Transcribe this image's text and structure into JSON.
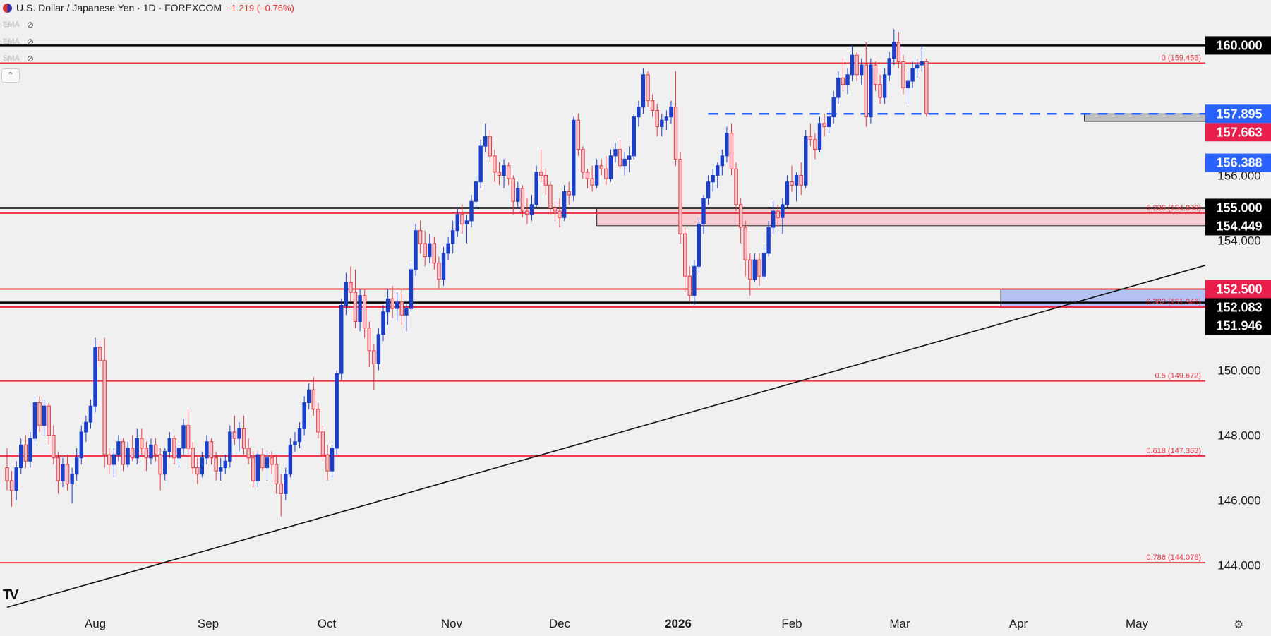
{
  "header": {
    "title": "U.S. Dollar / Japanese Yen · 1D · FOREXCOM",
    "change": "−1.219 (−0.76%)",
    "indicators": [
      "EMA",
      "EMA",
      "SMA"
    ]
  },
  "colors": {
    "bull": "#1a3fc9",
    "bear": "#e03b45",
    "red_line": "#e8333f",
    "black_line": "#000000",
    "blue_dash": "#2962ff",
    "pink_zone": "#f4c7cc",
    "blue_zone": "#aab9f2",
    "gray_zone": "#b5b5b5",
    "label_black": "#000000",
    "label_blue": "#2962ff",
    "label_red": "#e91e4b"
  },
  "chart_data": {
    "type": "candlestick",
    "ylim": [
      142.6,
      161.4
    ],
    "x_tick_labels": [
      "Aug",
      "Sep",
      "Oct",
      "Nov",
      "Dec",
      "2026",
      "Feb",
      "Mar",
      "Apr",
      "May"
    ],
    "y_tick_labels": [
      "144.000",
      "146.000",
      "148.000",
      "150.000",
      "154.000",
      "156.000"
    ],
    "price_labels": [
      {
        "text": "160.000",
        "price": 160.0,
        "style": "black"
      },
      {
        "text": "157.895",
        "price": 157.895,
        "style": "blue"
      },
      {
        "text": "157.663",
        "price": 157.663,
        "style": "red"
      },
      {
        "text": "156.388",
        "price": 156.388,
        "style": "blue"
      },
      {
        "text": "155.000",
        "price": 155.0,
        "style": "black"
      },
      {
        "text": "154.449",
        "price": 154.449,
        "style": "black"
      },
      {
        "text": "152.500",
        "price": 152.5,
        "style": "red"
      },
      {
        "text": "152.083",
        "price": 152.083,
        "style": "black"
      },
      {
        "text": "151.946",
        "price": 151.946,
        "style": "black"
      }
    ],
    "horizontal_lines": [
      {
        "price": 160.0,
        "style": "black"
      },
      {
        "price": 159.456,
        "style": "red"
      },
      {
        "price": 155.0,
        "style": "black"
      },
      {
        "price": 154.838,
        "style": "red"
      },
      {
        "price": 152.5,
        "style": "red"
      },
      {
        "price": 152.083,
        "style": "black"
      },
      {
        "price": 151.946,
        "style": "red"
      },
      {
        "price": 149.672,
        "style": "red"
      },
      {
        "price": 147.363,
        "style": "red"
      },
      {
        "price": 144.076,
        "style": "red"
      }
    ],
    "fib_labels": [
      {
        "text": "0 (159.456)",
        "price": 159.456
      },
      {
        "text": "0.236 (154.838)",
        "price": 154.838
      },
      {
        "text": "0.382 (151.946)",
        "price": 151.946
      },
      {
        "text": "0.5 (149.672)",
        "price": 149.672
      },
      {
        "text": "0.618 (147.363)",
        "price": 147.363
      },
      {
        "text": "0.786 (144.076)",
        "price": 144.076
      }
    ],
    "trendline": {
      "start": [
        0,
        142.7
      ],
      "end": [
        321,
        155.8
      ]
    },
    "dashed_levels": [
      {
        "price": 157.895,
        "from": 151,
        "to": 344
      },
      {
        "price": 156.388,
        "from": 262,
        "to": 344
      }
    ],
    "zones": [
      {
        "name": "resistance-zone",
        "from": 127,
        "to": 321,
        "top": 155.0,
        "bottom": 154.449,
        "style": "pink"
      },
      {
        "name": "support-zone",
        "from": 214,
        "to": 283,
        "top": 152.5,
        "bottom": 151.946,
        "style": "blue"
      },
      {
        "name": "consolidation-zone",
        "from": 232,
        "to": 344,
        "top": 157.895,
        "bottom": 157.663,
        "style": "gray"
      }
    ],
    "candles": [
      [
        147,
        147.6,
        146.3,
        146.6
      ],
      [
        146.6,
        146.9,
        145.8,
        146.3
      ],
      [
        146.3,
        147.2,
        146,
        147
      ],
      [
        147,
        147.9,
        146.8,
        147.7
      ],
      [
        147.7,
        148,
        147,
        147.2
      ],
      [
        147.2,
        148.1,
        147,
        147.9
      ],
      [
        147.9,
        149.2,
        147.7,
        149
      ],
      [
        149,
        149.2,
        148.1,
        148.3
      ],
      [
        148.3,
        149.1,
        148,
        148.9
      ],
      [
        148.9,
        149,
        147.7,
        148
      ],
      [
        148,
        148.3,
        147.1,
        147.3
      ],
      [
        147.3,
        147.5,
        146.2,
        146.6
      ],
      [
        146.6,
        147.3,
        146.4,
        147.1
      ],
      [
        147.1,
        147.4,
        146.3,
        146.5
      ],
      [
        146.5,
        147,
        145.9,
        146.8
      ],
      [
        146.8,
        147.6,
        146.6,
        147.3
      ],
      [
        147.3,
        148.3,
        147.1,
        148.1
      ],
      [
        148.1,
        148.6,
        147.8,
        148.4
      ],
      [
        148.4,
        149.1,
        148.2,
        148.9
      ],
      [
        148.9,
        151,
        148.7,
        150.7
      ],
      [
        150.7,
        150.9,
        150.1,
        150.3
      ],
      [
        150.3,
        151,
        147,
        147.4
      ],
      [
        147.4,
        147.6,
        146.8,
        147.1
      ],
      [
        147.1,
        147.6,
        146.7,
        147.4
      ],
      [
        147.4,
        148,
        147.2,
        147.8
      ],
      [
        147.8,
        147.9,
        146.9,
        147.1
      ],
      [
        147.1,
        147.8,
        147,
        147.6
      ],
      [
        147.6,
        148,
        147.2,
        147.3
      ],
      [
        147.3,
        148.2,
        147.1,
        147.9
      ],
      [
        147.9,
        148.2,
        147.4,
        147.6
      ],
      [
        147.6,
        147.8,
        146.9,
        147.3
      ],
      [
        147.3,
        147.9,
        147.1,
        147.7
      ],
      [
        147.7,
        147.9,
        147.2,
        147.4
      ],
      [
        147.4,
        147.6,
        146.3,
        146.8
      ],
      [
        146.8,
        147.6,
        146.6,
        147.5
      ],
      [
        147.5,
        148.1,
        147.3,
        147.9
      ],
      [
        147.9,
        148,
        147.1,
        147.3
      ],
      [
        147.3,
        147.8,
        147,
        147.6
      ],
      [
        147.6,
        148.5,
        147.4,
        148.3
      ],
      [
        148.3,
        148.8,
        147.4,
        147.6
      ],
      [
        147.6,
        147.8,
        146.8,
        147
      ],
      [
        147,
        147.3,
        146.5,
        146.8
      ],
      [
        146.8,
        147.5,
        146.7,
        147.3
      ],
      [
        147.3,
        148,
        147.1,
        147.8
      ],
      [
        147.8,
        147.9,
        147.1,
        147.3
      ],
      [
        147.3,
        147.5,
        146.6,
        146.9
      ],
      [
        146.9,
        147.3,
        146.6,
        147
      ],
      [
        147,
        147.4,
        146.8,
        147.2
      ],
      [
        147.2,
        148.3,
        147,
        148.1
      ],
      [
        148.1,
        148.6,
        147.7,
        147.9
      ],
      [
        147.9,
        148.4,
        147.5,
        148.2
      ],
      [
        148.2,
        148.6,
        147.4,
        147.6
      ],
      [
        147.6,
        147.9,
        147.1,
        147.3
      ],
      [
        147.3,
        147.5,
        146.4,
        146.6
      ],
      [
        146.6,
        147.5,
        146.4,
        147.4
      ],
      [
        147.4,
        147.6,
        146.9,
        147
      ],
      [
        147,
        147.5,
        146.6,
        147.3
      ],
      [
        147.3,
        147.5,
        146.8,
        147.1
      ],
      [
        147.1,
        147.4,
        146.2,
        146.5
      ],
      [
        146.5,
        146.8,
        145.5,
        146.2
      ],
      [
        146.2,
        147,
        146,
        146.8
      ],
      [
        146.8,
        147.9,
        146.7,
        147.7
      ],
      [
        147.7,
        148.1,
        147.5,
        147.8
      ],
      [
        147.8,
        148.4,
        147.6,
        148.2
      ],
      [
        148.2,
        149.2,
        148,
        149
      ],
      [
        149,
        149.6,
        148.8,
        149.4
      ],
      [
        149.4,
        149.8,
        148.6,
        148.8
      ],
      [
        148.8,
        149,
        147.9,
        148.1
      ],
      [
        148.1,
        148.3,
        147.2,
        147.4
      ],
      [
        147.4,
        147.7,
        146.6,
        146.9
      ],
      [
        146.9,
        147.7,
        146.7,
        147.6
      ],
      [
        147.6,
        150,
        147.4,
        149.9
      ],
      [
        149.9,
        152.2,
        149.7,
        152
      ],
      [
        152,
        153,
        151.7,
        152.7
      ],
      [
        152.7,
        153.2,
        152.1,
        152.4
      ],
      [
        152.4,
        153.1,
        151.3,
        151.5
      ],
      [
        151.5,
        152.5,
        151.2,
        152.3
      ],
      [
        152.3,
        152.5,
        151,
        151.3
      ],
      [
        151.3,
        151.5,
        150.1,
        150.6
      ],
      [
        150.6,
        150.8,
        149.4,
        150.2
      ],
      [
        150.2,
        151.3,
        150,
        151.1
      ],
      [
        151.1,
        152,
        150.9,
        151.8
      ],
      [
        151.8,
        152.5,
        151.4,
        152.2
      ],
      [
        152.2,
        152.6,
        151.6,
        151.9
      ],
      [
        151.9,
        152.4,
        151.5,
        152.1
      ],
      [
        152.1,
        152.5,
        151.4,
        151.7
      ],
      [
        151.7,
        152.1,
        151.2,
        151.9
      ],
      [
        151.9,
        153.3,
        151.8,
        153.1
      ],
      [
        153.1,
        154.5,
        152.9,
        154.3
      ],
      [
        154.3,
        154.6,
        153.6,
        153.9
      ],
      [
        153.9,
        154.3,
        153.2,
        153.5
      ],
      [
        153.5,
        154.2,
        153.3,
        153.9
      ],
      [
        153.9,
        154.1,
        153.1,
        153.3
      ],
      [
        153.3,
        153.5,
        152.5,
        152.8
      ],
      [
        152.8,
        153.8,
        152.6,
        153.6
      ],
      [
        153.6,
        154.1,
        153.4,
        153.9
      ],
      [
        153.9,
        154.6,
        153.6,
        154.3
      ],
      [
        154.3,
        155,
        154.1,
        154.8
      ],
      [
        154.8,
        155.1,
        154.2,
        154.5
      ],
      [
        154.5,
        154.8,
        153.9,
        154.6
      ],
      [
        154.6,
        155.4,
        154.4,
        155.2
      ],
      [
        155.2,
        156,
        155,
        155.8
      ],
      [
        155.8,
        157.1,
        155.6,
        156.9
      ],
      [
        156.9,
        157.6,
        156.7,
        157.2
      ],
      [
        157.2,
        157.4,
        156.4,
        156.6
      ],
      [
        156.6,
        156.8,
        155.8,
        156.1
      ],
      [
        156.1,
        156.4,
        155.7,
        156
      ],
      [
        156,
        156.5,
        155.6,
        156.3
      ],
      [
        156.3,
        156.4,
        155.7,
        155.9
      ],
      [
        155.9,
        156,
        154.8,
        155.2
      ],
      [
        155.2,
        155.8,
        155,
        155.6
      ],
      [
        155.6,
        155.7,
        154.7,
        154.9
      ],
      [
        154.9,
        155.3,
        154.5,
        154.8
      ],
      [
        154.8,
        155.4,
        154.6,
        155.1
      ],
      [
        155.1,
        156.3,
        155,
        156.1
      ],
      [
        156.1,
        156.8,
        155.8,
        156
      ],
      [
        156,
        156.2,
        155.4,
        155.7
      ],
      [
        155.7,
        155.8,
        154.8,
        155
      ],
      [
        155,
        155.2,
        154.6,
        154.9
      ],
      [
        154.9,
        155.3,
        154.4,
        154.7
      ],
      [
        154.7,
        155.7,
        154.6,
        155.5
      ],
      [
        155.5,
        155.8,
        155.1,
        155.4
      ],
      [
        155.4,
        157.8,
        155.2,
        157.7
      ],
      [
        157.7,
        157.9,
        156.6,
        156.8
      ],
      [
        156.8,
        156.9,
        155.9,
        156.1
      ],
      [
        156.1,
        156.2,
        155.6,
        155.9
      ],
      [
        155.9,
        156.3,
        155.5,
        155.7
      ],
      [
        155.7,
        156.5,
        155.6,
        156.3
      ],
      [
        156.3,
        156.5,
        156,
        156.2
      ],
      [
        156.2,
        156.6,
        155.7,
        155.9
      ],
      [
        155.9,
        156.8,
        155.8,
        156.6
      ],
      [
        156.6,
        157,
        156.4,
        156.8
      ],
      [
        156.8,
        157.1,
        156.2,
        156.3
      ],
      [
        156.3,
        156.7,
        156,
        156.5
      ],
      [
        156.5,
        156.9,
        156.1,
        156.6
      ],
      [
        156.6,
        157.9,
        156.5,
        157.8
      ],
      [
        157.8,
        158.3,
        157.5,
        158.1
      ],
      [
        158.1,
        159.3,
        157.9,
        159.1
      ],
      [
        159.1,
        159.2,
        158.1,
        158.3
      ],
      [
        158.3,
        158.5,
        157.8,
        158
      ],
      [
        158,
        158.2,
        157.2,
        157.5
      ],
      [
        157.5,
        157.9,
        157.2,
        157.7
      ],
      [
        157.7,
        158,
        157.4,
        157.8
      ],
      [
        157.8,
        158.3,
        157.6,
        158.1
      ],
      [
        158.1,
        159.2,
        156.3,
        156.5
      ],
      [
        156.5,
        156.7,
        153.9,
        154.2
      ],
      [
        154.2,
        154.4,
        152.4,
        152.9
      ],
      [
        152.9,
        153.2,
        152.1,
        152.3
      ],
      [
        152.3,
        153.4,
        152,
        153.2
      ],
      [
        153.2,
        154.7,
        153,
        154.5
      ],
      [
        154.5,
        155.4,
        154.2,
        155.3
      ],
      [
        155.3,
        156,
        155.1,
        155.8
      ],
      [
        155.8,
        156.2,
        155.5,
        156
      ],
      [
        156,
        156.4,
        155.6,
        156.3
      ],
      [
        156.3,
        156.8,
        156,
        156.6
      ],
      [
        156.6,
        157.5,
        156.4,
        157.3
      ],
      [
        157.3,
        157.6,
        156,
        156.2
      ],
      [
        156.2,
        156.4,
        154.9,
        155.1
      ],
      [
        155.1,
        155.3,
        153.9,
        154.4
      ],
      [
        154.4,
        154.6,
        152.9,
        153.4
      ],
      [
        153.4,
        153.6,
        152.3,
        152.8
      ],
      [
        152.8,
        153.6,
        152.7,
        153.4
      ],
      [
        153.4,
        153.6,
        152.6,
        152.9
      ],
      [
        152.9,
        153.8,
        152.8,
        153.6
      ],
      [
        153.6,
        154.6,
        153.5,
        154.4
      ],
      [
        154.4,
        155.2,
        154.2,
        154.9
      ],
      [
        154.9,
        155.1,
        154.4,
        154.7
      ],
      [
        154.7,
        155.3,
        154.2,
        155.1
      ],
      [
        155.1,
        156,
        155,
        155.8
      ],
      [
        155.8,
        156.3,
        155.5,
        155.7
      ],
      [
        155.7,
        156.1,
        155.2,
        156
      ],
      [
        156,
        156.4,
        155.4,
        155.7
      ],
      [
        155.7,
        157.4,
        155.6,
        157.2
      ],
      [
        157.2,
        157.6,
        156.9,
        157.1
      ],
      [
        157.1,
        157.3,
        156.5,
        156.8
      ],
      [
        156.8,
        157.8,
        156.7,
        157.6
      ],
      [
        157.6,
        157.9,
        157.2,
        157.5
      ],
      [
        157.5,
        158,
        157.3,
        157.8
      ],
      [
        157.8,
        158.6,
        157.6,
        158.4
      ],
      [
        158.4,
        159.2,
        158.2,
        159
      ],
      [
        159,
        159.6,
        158.6,
        158.8
      ],
      [
        158.8,
        159.3,
        158.5,
        159.1
      ],
      [
        159.1,
        160,
        158.9,
        159.7
      ],
      [
        159.7,
        159.8,
        158.9,
        159.1
      ],
      [
        159.1,
        159.6,
        158.8,
        159.4
      ],
      [
        159.4,
        160.1,
        157.5,
        157.8
      ],
      [
        157.8,
        159.6,
        157.6,
        159.4
      ],
      [
        159.4,
        159.5,
        158.6,
        158.8
      ],
      [
        158.8,
        159.1,
        158.2,
        158.4
      ],
      [
        158.4,
        159.3,
        158.2,
        159.1
      ],
      [
        159.1,
        159.8,
        158.9,
        159.6
      ],
      [
        159.6,
        160.5,
        159.4,
        160.1
      ],
      [
        160.1,
        160.4,
        159.3,
        159.5
      ],
      [
        159.5,
        159.7,
        158.5,
        158.7
      ],
      [
        158.7,
        159.2,
        158.2,
        158.9
      ],
      [
        158.9,
        159.5,
        158.7,
        159.3
      ],
      [
        159.3,
        159.6,
        159,
        159.4
      ],
      [
        159.4,
        160,
        159.2,
        159.5
      ],
      [
        159.5,
        159.6,
        157.8,
        157.9
      ]
    ]
  }
}
